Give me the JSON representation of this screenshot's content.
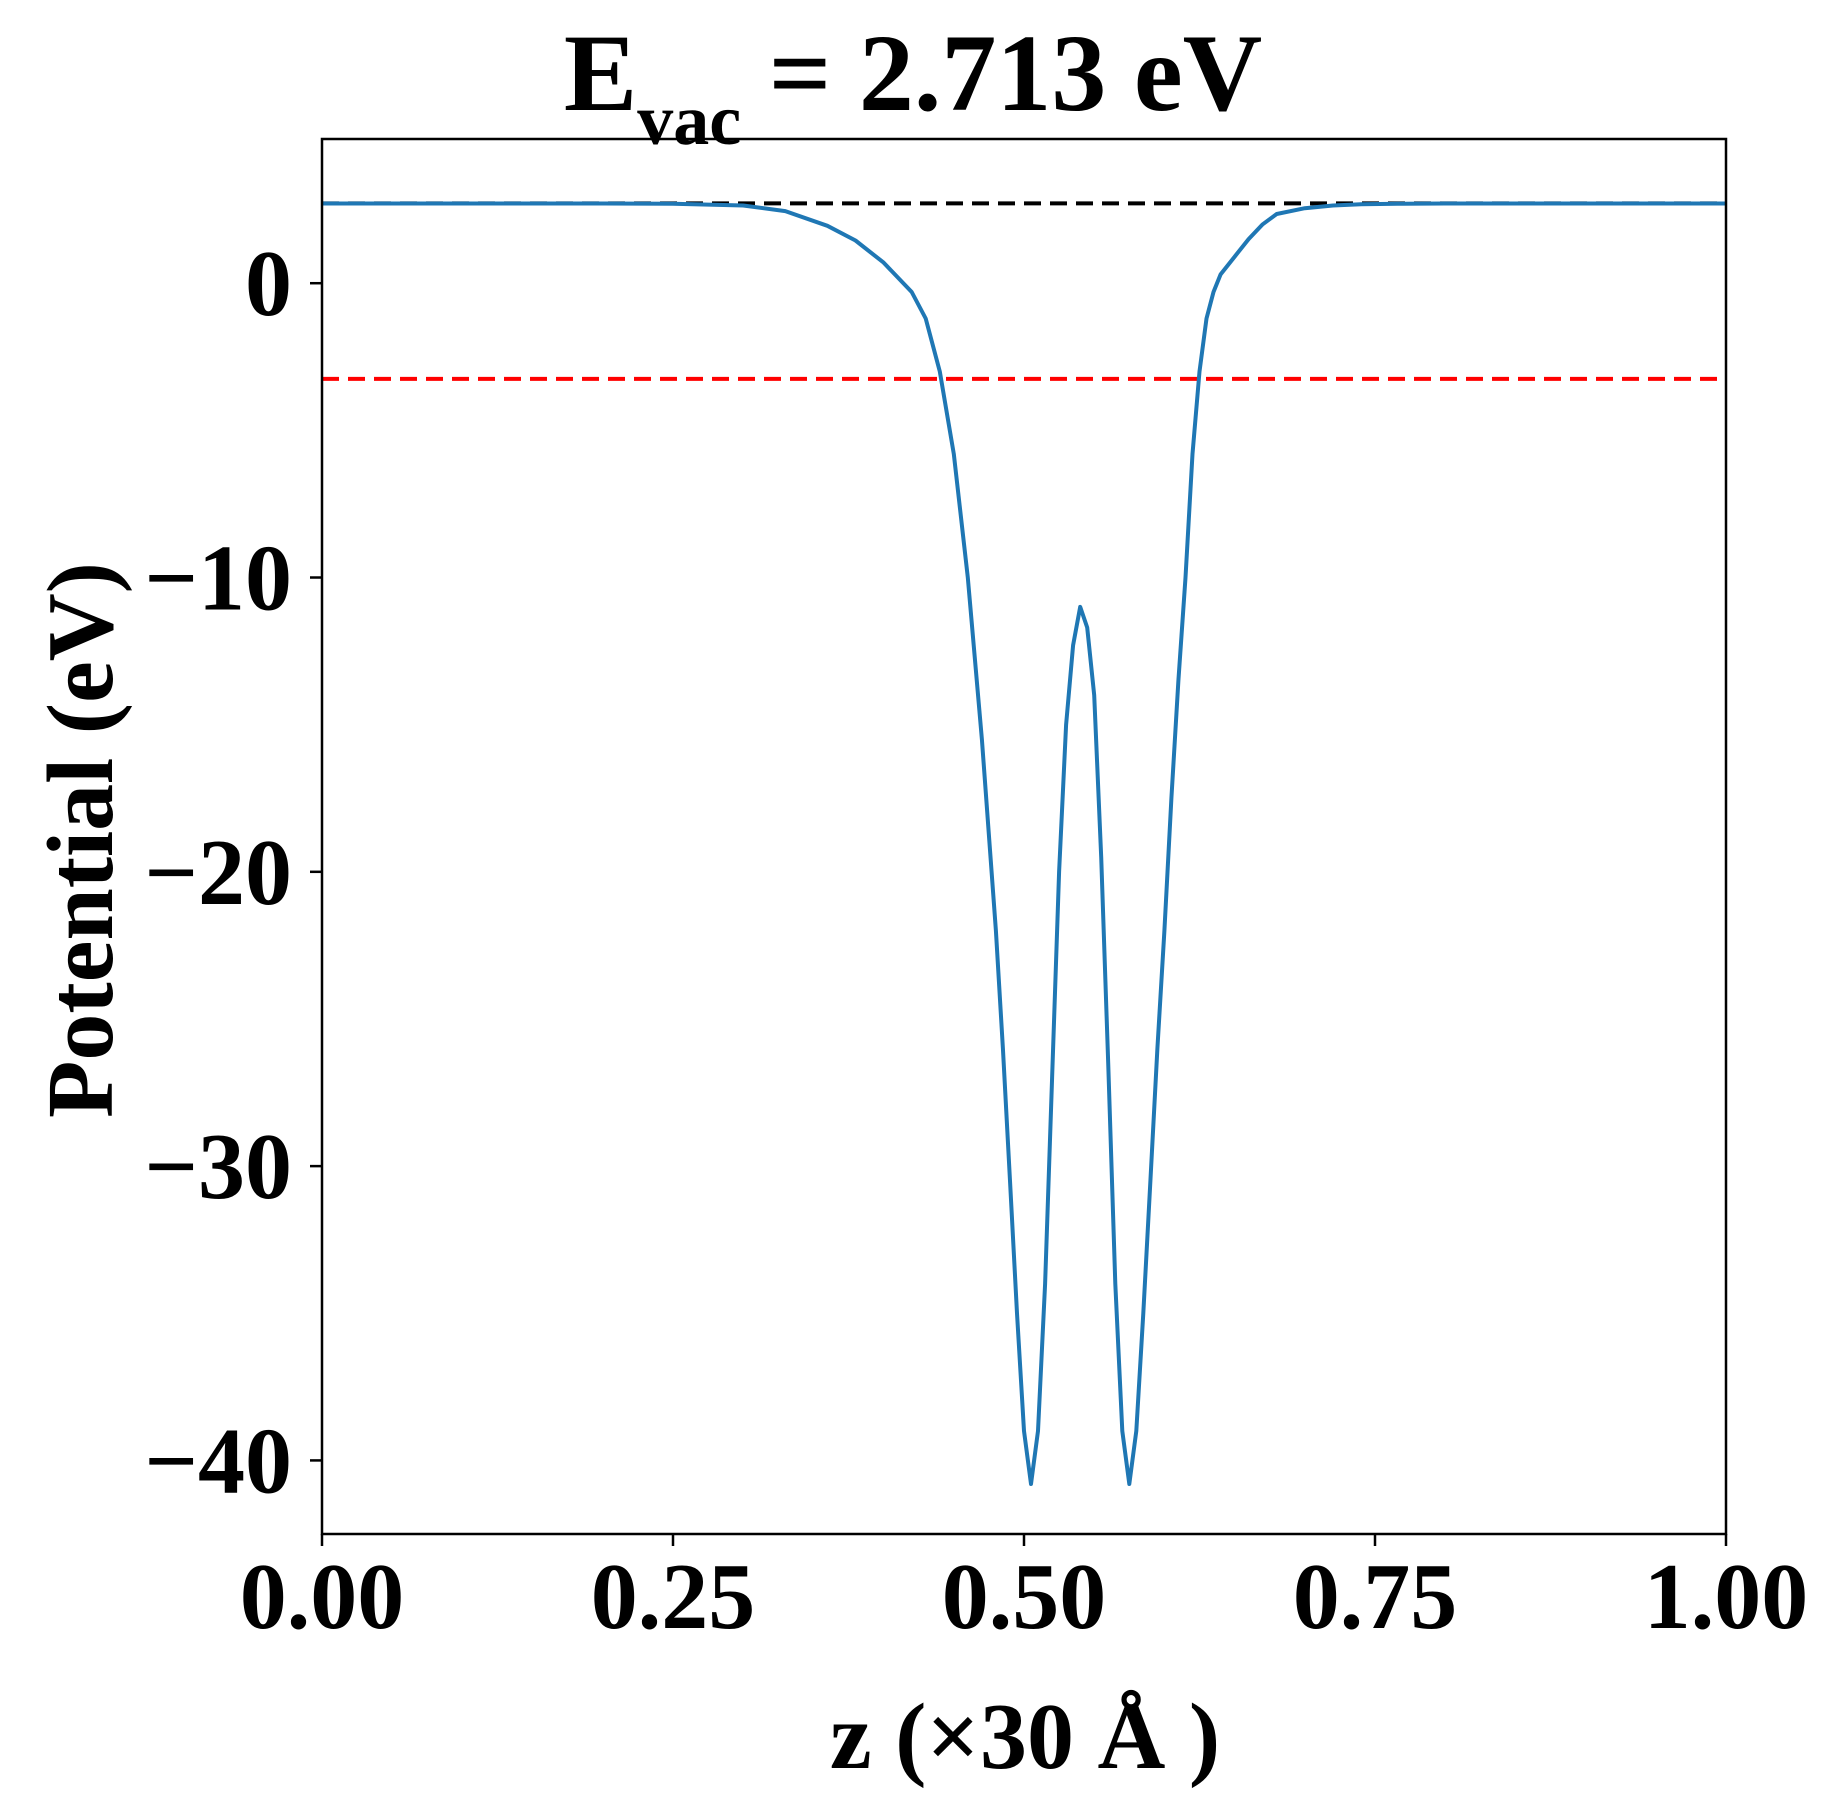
{
  "chart_data": {
    "type": "line",
    "title": {
      "main": "E",
      "sub": "vac",
      "rest": " = 2.713 eV"
    },
    "xlabel": "z (×30 Å )",
    "ylabel": "Potential (eV)",
    "xlim": [
      0,
      1
    ],
    "ylim": [
      -42.5,
      4.9
    ],
    "xticks": [
      0.0,
      0.25,
      0.5,
      0.75,
      1.0
    ],
    "xtick_labels": [
      "0.00",
      "0.25",
      "0.50",
      "0.75",
      "1.00"
    ],
    "yticks": [
      0,
      -10,
      -20,
      -30,
      -40
    ],
    "ytick_labels": [
      "0",
      "−10",
      "−20",
      "−30",
      "−40"
    ],
    "reference_lines": [
      {
        "y": 2.713,
        "color": "#000000",
        "style": "dashed"
      },
      {
        "y": -3.25,
        "color": "#ff0000",
        "style": "dashed"
      }
    ],
    "series": [
      {
        "color": "#1f77b4",
        "x": [
          0.0,
          0.05,
          0.1,
          0.15,
          0.2,
          0.25,
          0.3,
          0.33,
          0.36,
          0.38,
          0.4,
          0.42,
          0.43,
          0.44,
          0.45,
          0.46,
          0.47,
          0.48,
          0.485,
          0.49,
          0.495,
          0.5,
          0.505,
          0.51,
          0.515,
          0.52,
          0.525,
          0.53,
          0.535,
          0.54,
          0.545,
          0.55,
          0.555,
          0.56,
          0.565,
          0.57,
          0.575,
          0.58,
          0.585,
          0.59,
          0.595,
          0.6,
          0.605,
          0.61,
          0.615,
          0.62,
          0.625,
          0.63,
          0.635,
          0.64,
          0.65,
          0.66,
          0.67,
          0.68,
          0.7,
          0.72,
          0.74,
          0.77,
          0.8,
          0.85,
          0.9,
          0.95,
          1.0
        ],
        "y": [
          2.71,
          2.71,
          2.71,
          2.71,
          2.71,
          2.7,
          2.64,
          2.45,
          1.95,
          1.45,
          0.7,
          -0.3,
          -1.2,
          -3.0,
          -5.8,
          -10.0,
          -15.5,
          -22.0,
          -26.0,
          -30.5,
          -35.0,
          -39.0,
          -40.8,
          -39.0,
          -34.0,
          -27.0,
          -20.0,
          -15.0,
          -12.3,
          -11.0,
          -11.7,
          -14.0,
          -19.5,
          -26.5,
          -34.0,
          -39.0,
          -40.8,
          -39.0,
          -35.0,
          -30.5,
          -26.0,
          -22.0,
          -17.5,
          -13.5,
          -10.0,
          -5.8,
          -3.0,
          -1.2,
          -0.3,
          0.3,
          0.9,
          1.5,
          2.0,
          2.35,
          2.55,
          2.64,
          2.68,
          2.7,
          2.71,
          2.71,
          2.71,
          2.71,
          2.71
        ]
      }
    ],
    "grid": false,
    "legend": "none"
  }
}
